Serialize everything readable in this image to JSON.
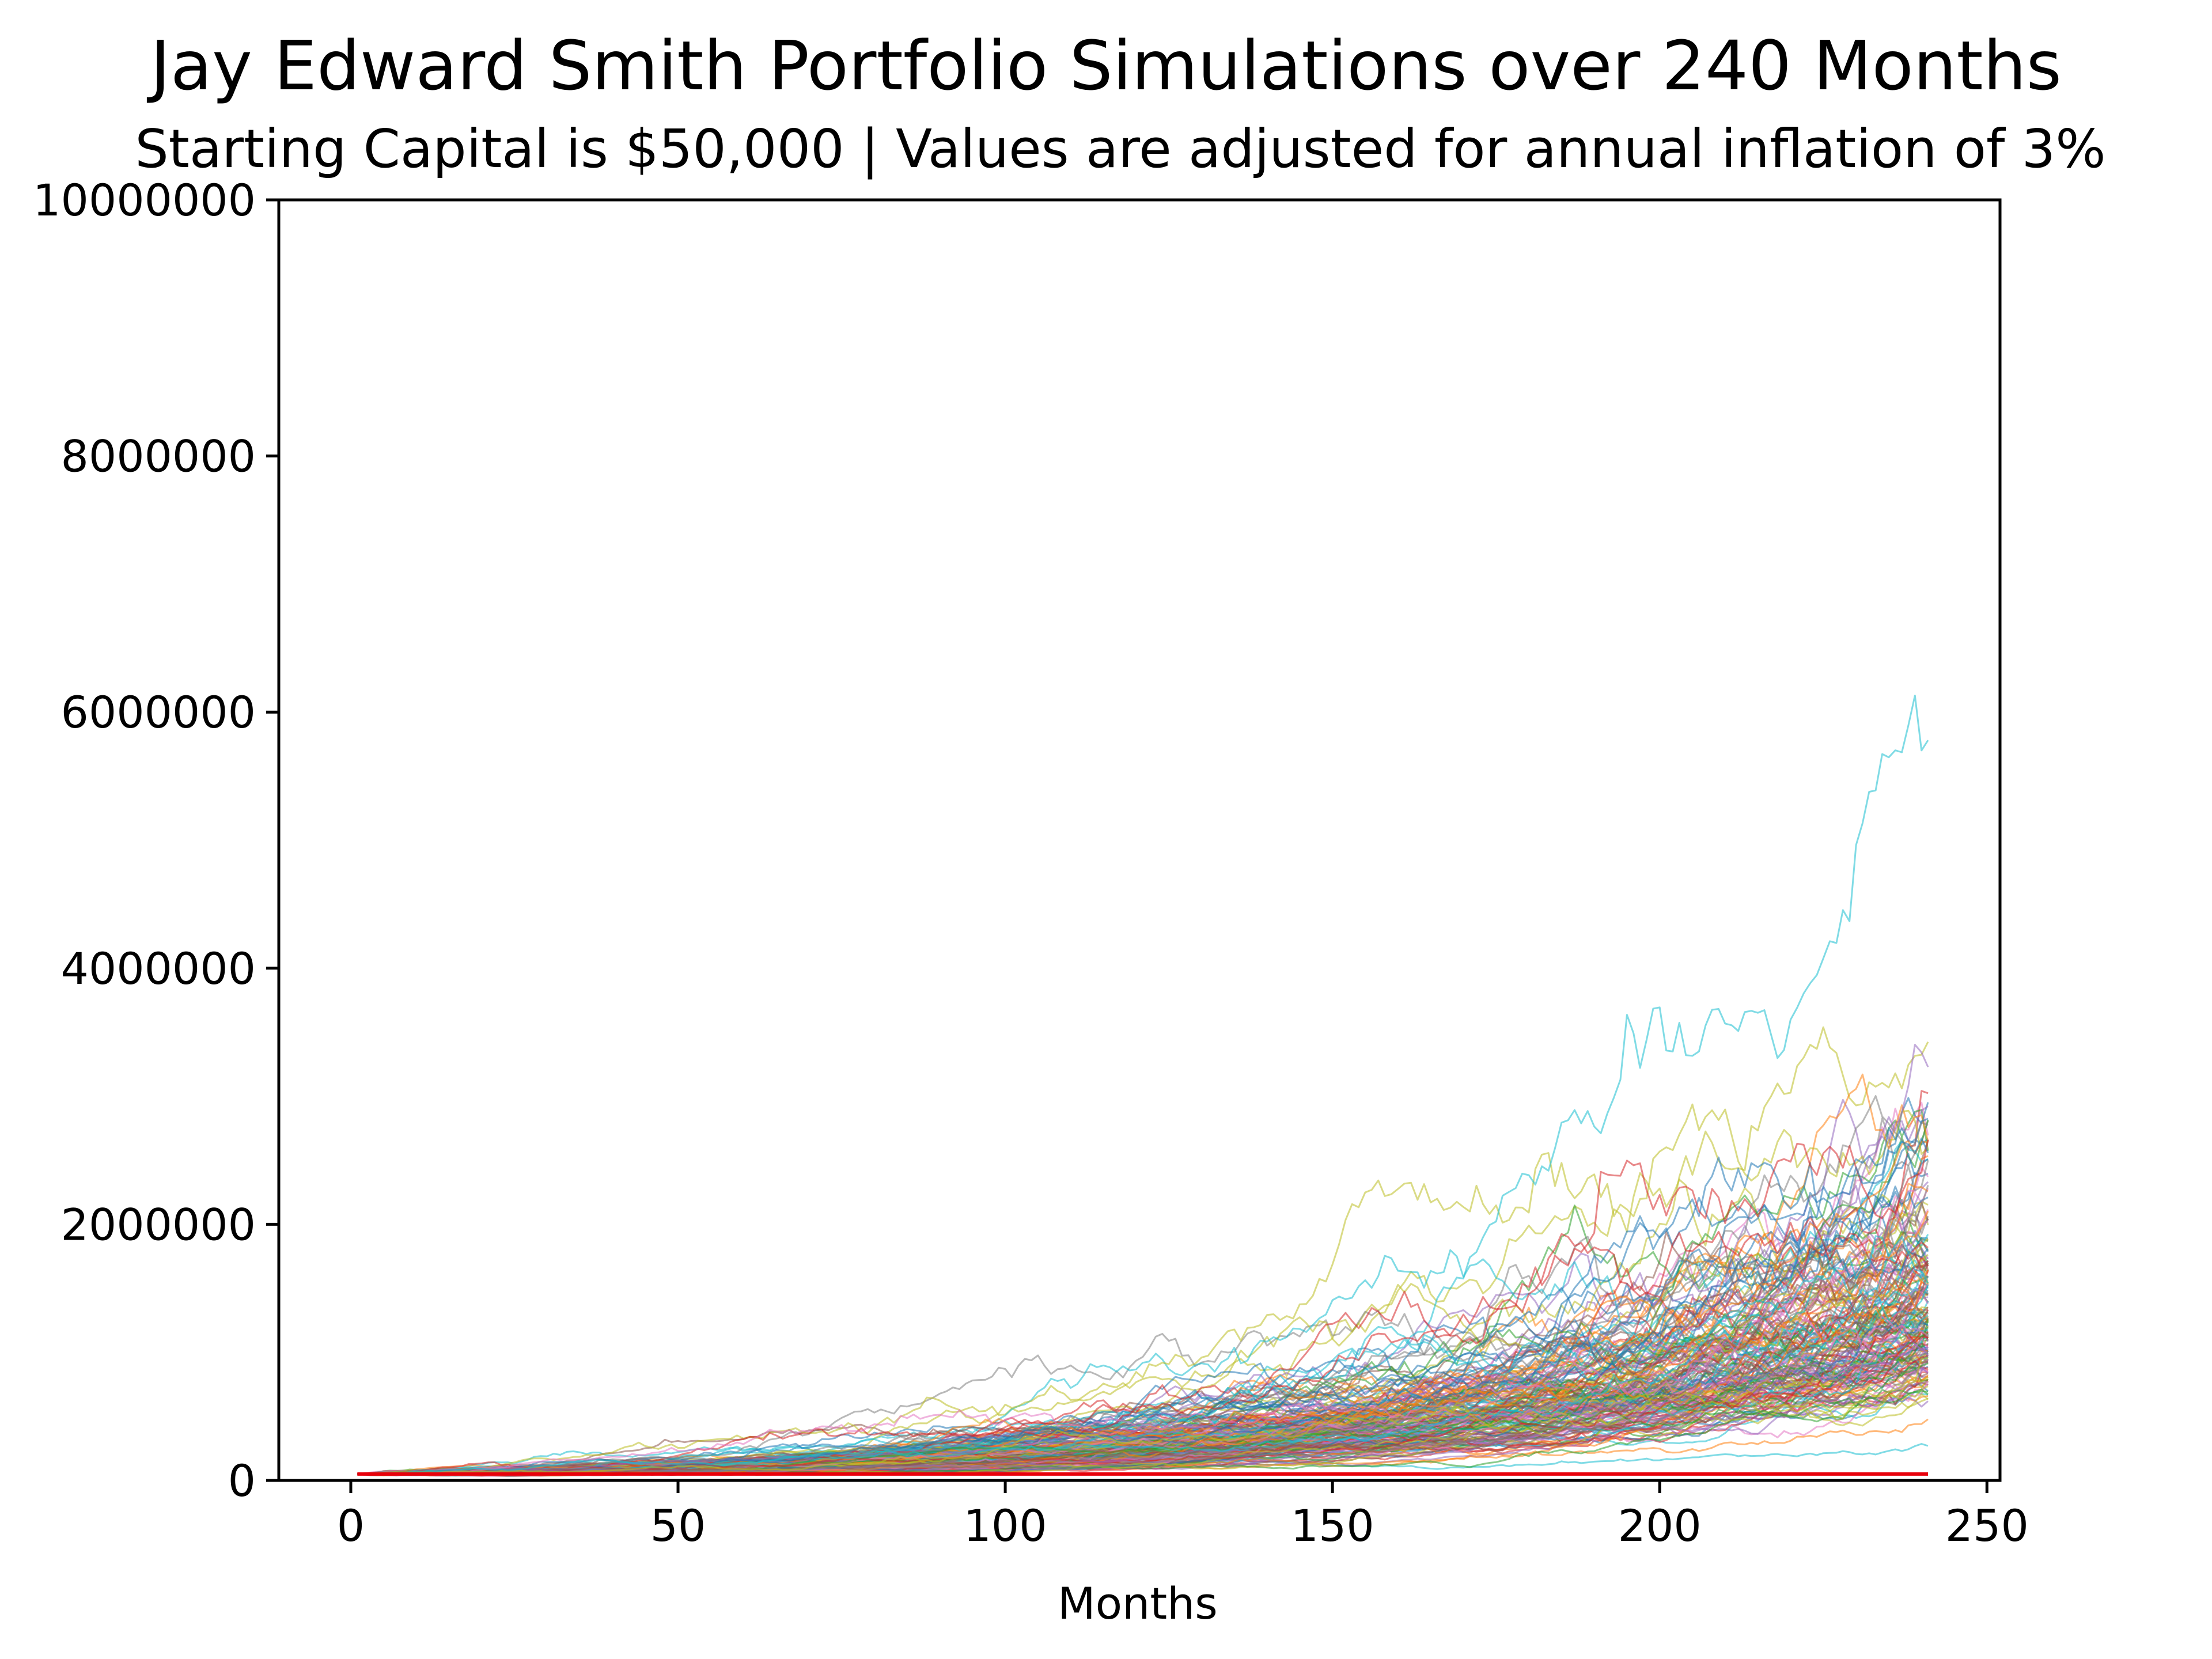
{
  "chart_data": {
    "type": "line",
    "title": "Jay Edward Smith Portfolio Simulations over 240 Months",
    "subtitle": "Starting Capital is $50,000 | Values are adjusted for annual inflation of 3%",
    "xlabel": "Months",
    "ylabel": "",
    "xlim": [
      -11,
      252
    ],
    "ylim": [
      0,
      10000000
    ],
    "x_ticks": [
      0,
      50,
      100,
      150,
      200,
      250
    ],
    "x_tick_labels": [
      "0",
      "50",
      "100",
      "150",
      "200",
      "250"
    ],
    "y_ticks": [
      0,
      2000000,
      4000000,
      6000000,
      8000000,
      10000000
    ],
    "y_tick_labels": [
      "0",
      "2000000",
      "4000000",
      "6000000",
      "8000000",
      "10000000"
    ],
    "grid": false,
    "legend": "none",
    "simulation": {
      "count": 200,
      "months": 240,
      "start_month": 1,
      "starting_capital": 50000,
      "final_value_max": 5780000,
      "final_value_median": 1300000,
      "final_value_min": 270000,
      "line_opacity": 0.55
    },
    "baseline": {
      "name": "Starting Capital",
      "value": 50000,
      "x_start": 1,
      "x_end": 241,
      "color": "#e8000b"
    },
    "palette": [
      "#1f77b4",
      "#ff7f0e",
      "#2ca02c",
      "#d62728",
      "#9467bd",
      "#8c564b",
      "#e377c2",
      "#7f7f7f",
      "#bcbd22",
      "#17becf"
    ]
  }
}
